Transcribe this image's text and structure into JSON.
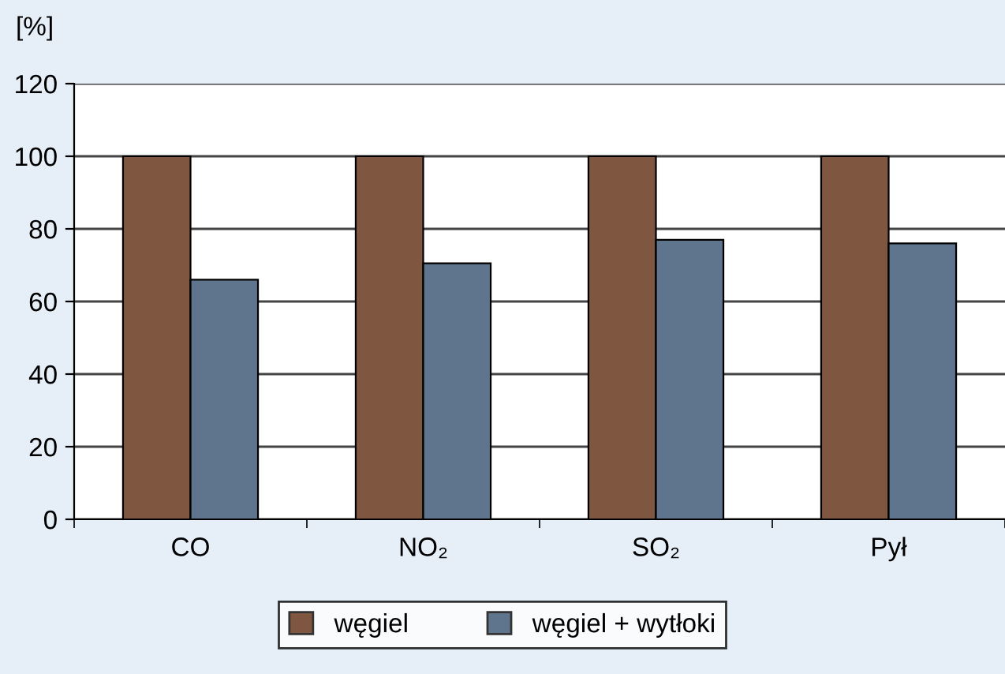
{
  "chart_data": {
    "type": "bar",
    "ylabel": "[%]",
    "categories": [
      "CO",
      "NO₂",
      "SO₂",
      "Pył"
    ],
    "series": [
      {
        "name": "węgiel",
        "color": "#7f5640",
        "values": [
          100,
          100,
          100,
          100
        ]
      },
      {
        "name": "węgiel + wytłoki",
        "color": "#5e758d",
        "values": [
          66,
          70.5,
          77,
          76
        ]
      }
    ],
    "ylim": [
      0,
      120
    ],
    "yticks": [
      0,
      20,
      40,
      60,
      80,
      100,
      120
    ],
    "grid": "y",
    "legend": "bottom"
  }
}
